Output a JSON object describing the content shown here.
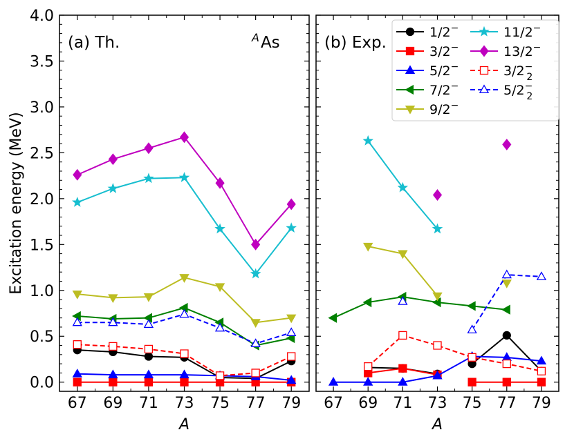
{
  "chart_data": {
    "type": "line",
    "x_values": [
      67,
      69,
      71,
      73,
      75,
      77,
      79
    ],
    "ylim": [
      -0.1,
      4.0
    ],
    "y_ticks": [
      "0.0",
      "0.5",
      "1.0",
      "1.5",
      "2.0",
      "2.5",
      "3.0",
      "3.5",
      "4.0"
    ],
    "ylabel": "Excitation energy (MeV)",
    "xlabel": "A",
    "nuclide_label": {
      "prefix": "A",
      "element": "As"
    },
    "panels": [
      {
        "id": "th",
        "label": "(a) Th."
      },
      {
        "id": "exp",
        "label": "(b) Exp."
      }
    ],
    "series": [
      {
        "key": "1/2-",
        "color": "#000000",
        "marker": "circle",
        "filled": true,
        "dashed": false,
        "legend": {
          "base": "1/2",
          "sup": "−",
          "sub": ""
        },
        "th": [
          [
            67,
            0.35
          ],
          [
            69,
            0.33
          ],
          [
            71,
            0.28
          ],
          [
            73,
            0.27
          ],
          [
            75,
            0.05
          ],
          [
            77,
            0.04
          ],
          [
            79,
            0.23
          ]
        ],
        "exp": [
          [
            [
              69,
              0.16
            ],
            [
              71,
              0.15
            ],
            [
              73,
              0.09
            ]
          ],
          [
            [
              75,
              0.2
            ],
            [
              77,
              0.51
            ],
            [
              79,
              0.12
            ]
          ]
        ]
      },
      {
        "key": "3/2-",
        "color": "#ff0000",
        "marker": "square",
        "filled": true,
        "dashed": false,
        "legend": {
          "base": "3/2",
          "sup": "−",
          "sub": ""
        },
        "th": [
          [
            67,
            0.0
          ],
          [
            69,
            0.0
          ],
          [
            71,
            0.0
          ],
          [
            73,
            0.0
          ],
          [
            75,
            0.0
          ],
          [
            77,
            0.0
          ],
          [
            79,
            0.0
          ]
        ],
        "exp": [
          [
            [
              69,
              0.1
            ],
            [
              71,
              0.15
            ],
            [
              73,
              0.08
            ]
          ],
          [
            [
              75,
              0.0
            ],
            [
              77,
              0.0
            ],
            [
              79,
              0.0
            ]
          ]
        ]
      },
      {
        "key": "5/2-",
        "color": "#0000ff",
        "marker": "triangle-up",
        "filled": true,
        "dashed": false,
        "legend": {
          "base": "5/2",
          "sup": "−",
          "sub": ""
        },
        "th": [
          [
            67,
            0.09
          ],
          [
            69,
            0.08
          ],
          [
            71,
            0.08
          ],
          [
            73,
            0.08
          ],
          [
            75,
            0.07
          ],
          [
            77,
            0.06
          ],
          [
            79,
            0.02
          ]
        ],
        "exp": [
          [
            [
              67,
              0.0
            ],
            [
              69,
              0.0
            ],
            [
              71,
              0.0
            ],
            [
              73,
              0.07
            ],
            [
              75,
              0.28
            ],
            [
              77,
              0.27
            ],
            [
              79,
              0.23
            ]
          ]
        ]
      },
      {
        "key": "7/2-",
        "color": "#008000",
        "marker": "triangle-left",
        "filled": true,
        "dashed": false,
        "legend": {
          "base": "7/2",
          "sup": "−",
          "sub": ""
        },
        "th": [
          [
            67,
            0.72
          ],
          [
            69,
            0.69
          ],
          [
            71,
            0.7
          ],
          [
            73,
            0.81
          ],
          [
            75,
            0.65
          ],
          [
            77,
            0.4
          ],
          [
            79,
            0.48
          ]
        ],
        "exp": [
          [
            [
              67,
              0.7
            ],
            [
              69,
              0.87
            ],
            [
              71,
              0.93
            ],
            [
              73,
              0.87
            ],
            [
              75,
              0.83
            ],
            [
              77,
              0.79
            ]
          ]
        ]
      },
      {
        "key": "9/2-",
        "color": "#bcbd22",
        "marker": "triangle-down",
        "filled": true,
        "dashed": false,
        "legend": {
          "base": "9/2",
          "sup": "−",
          "sub": ""
        },
        "th": [
          [
            67,
            0.96
          ],
          [
            69,
            0.92
          ],
          [
            71,
            0.93
          ],
          [
            73,
            1.14
          ],
          [
            75,
            1.04
          ],
          [
            77,
            0.65
          ],
          [
            79,
            0.7
          ]
        ],
        "exp": [
          [
            [
              69,
              1.48
            ],
            [
              71,
              1.4
            ],
            [
              73,
              0.94
            ]
          ],
          [
            [
              77,
              1.08
            ]
          ]
        ]
      },
      {
        "key": "11/2-",
        "color": "#17becf",
        "marker": "star",
        "filled": true,
        "dashed": false,
        "legend": {
          "base": "11/2",
          "sup": "−",
          "sub": ""
        },
        "th": [
          [
            67,
            1.96
          ],
          [
            69,
            2.11
          ],
          [
            71,
            2.22
          ],
          [
            73,
            2.23
          ],
          [
            75,
            1.67
          ],
          [
            77,
            1.18
          ],
          [
            79,
            1.68
          ]
        ],
        "exp": [
          [
            [
              69,
              2.63
            ],
            [
              71,
              2.12
            ],
            [
              73,
              1.67
            ]
          ]
        ]
      },
      {
        "key": "13/2-",
        "color": "#bf00bf",
        "marker": "diamond",
        "filled": true,
        "dashed": false,
        "legend": {
          "base": "13/2",
          "sup": "−",
          "sub": ""
        },
        "th": [
          [
            67,
            2.26
          ],
          [
            69,
            2.43
          ],
          [
            71,
            2.55
          ],
          [
            73,
            2.67
          ],
          [
            75,
            2.17
          ],
          [
            77,
            1.5
          ],
          [
            79,
            1.94
          ]
        ],
        "exp": [
          [
            [
              73,
              2.04
            ]
          ],
          [
            [
              77,
              2.59
            ]
          ]
        ]
      },
      {
        "key": "3/2-_2",
        "color": "#ff0000",
        "marker": "square",
        "filled": false,
        "dashed": true,
        "legend": {
          "base": "3/2",
          "sup": "−",
          "sub": "2"
        },
        "th": [
          [
            67,
            0.41
          ],
          [
            69,
            0.39
          ],
          [
            71,
            0.36
          ],
          [
            73,
            0.31
          ],
          [
            75,
            0.07
          ],
          [
            77,
            0.1
          ],
          [
            79,
            0.28
          ]
        ],
        "exp": [
          [
            [
              69,
              0.17
            ],
            [
              71,
              0.51
            ],
            [
              73,
              0.4
            ],
            [
              75,
              0.27
            ],
            [
              77,
              0.2
            ],
            [
              79,
              0.12
            ]
          ]
        ]
      },
      {
        "key": "5/2-_2",
        "color": "#0000ff",
        "marker": "triangle-up",
        "filled": false,
        "dashed": true,
        "legend": {
          "base": "5/2",
          "sup": "−",
          "sub": "2"
        },
        "th": [
          [
            67,
            0.65
          ],
          [
            69,
            0.65
          ],
          [
            71,
            0.63
          ],
          [
            73,
            0.74
          ],
          [
            75,
            0.59
          ],
          [
            77,
            0.42
          ],
          [
            79,
            0.54
          ]
        ],
        "exp": [
          [
            [
              71,
              0.88
            ]
          ],
          [
            [
              75,
              0.57
            ],
            [
              77,
              1.17
            ],
            [
              79,
              1.15
            ]
          ]
        ]
      }
    ]
  }
}
